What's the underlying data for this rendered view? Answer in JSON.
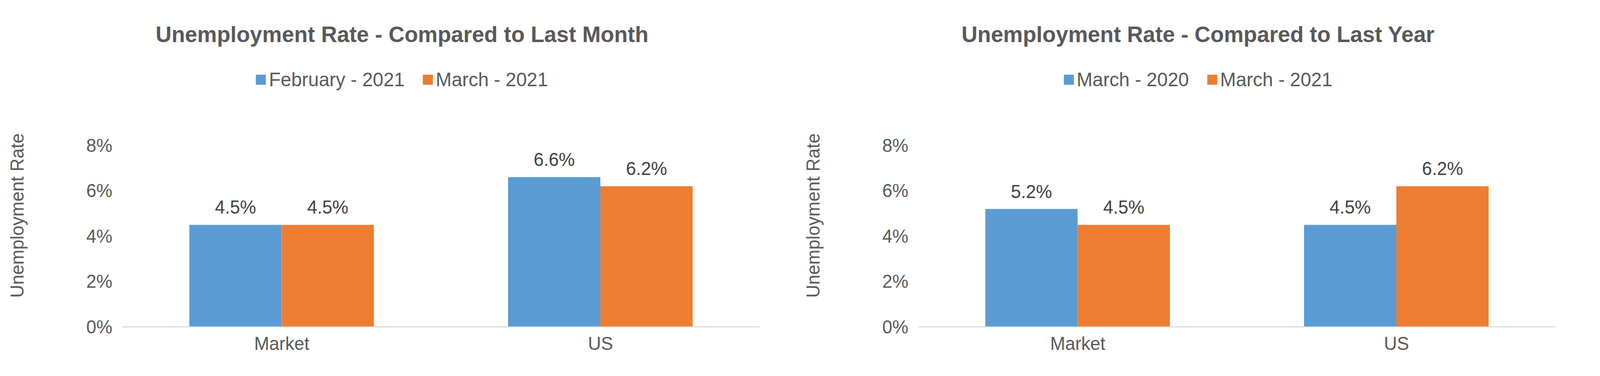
{
  "chart_data": [
    {
      "type": "bar",
      "title": "Unemployment Rate - Compared to Last Month",
      "ylabel": "Unemployment Rate",
      "categories": [
        "Market",
        "US"
      ],
      "series": [
        {
          "name": "February - 2021",
          "color": "#5b9bd5",
          "values": [
            4.5,
            6.6
          ],
          "value_labels": [
            "4.5%",
            "6.6%"
          ]
        },
        {
          "name": "March - 2021",
          "color": "#ed7d31",
          "values": [
            4.5,
            6.2
          ],
          "value_labels": [
            "4.5%",
            "6.2%"
          ]
        }
      ],
      "ylim": [
        0,
        8
      ],
      "yticks": [
        {
          "value": 0,
          "label": "0%"
        },
        {
          "value": 2,
          "label": "2%"
        },
        {
          "value": 4,
          "label": "4%"
        },
        {
          "value": 6,
          "label": "6%"
        },
        {
          "value": 8,
          "label": "8%"
        }
      ],
      "grid": false,
      "legend": "top",
      "data_labels": true
    },
    {
      "type": "bar",
      "title": "Unemployment Rate - Compared to Last Year",
      "ylabel": "Unemployment Rate",
      "categories": [
        "Market",
        "US"
      ],
      "series": [
        {
          "name": "March - 2020",
          "color": "#5b9bd5",
          "values": [
            5.2,
            4.5
          ],
          "value_labels": [
            "5.2%",
            "4.5%"
          ]
        },
        {
          "name": "March - 2021",
          "color": "#ed7d31",
          "values": [
            4.5,
            6.2
          ],
          "value_labels": [
            "4.5%",
            "6.2%"
          ]
        }
      ],
      "ylim": [
        0,
        8
      ],
      "yticks": [
        {
          "value": 0,
          "label": "0%"
        },
        {
          "value": 2,
          "label": "2%"
        },
        {
          "value": 4,
          "label": "4%"
        },
        {
          "value": 6,
          "label": "6%"
        },
        {
          "value": 8,
          "label": "8%"
        }
      ],
      "grid": false,
      "legend": "top",
      "data_labels": true
    }
  ]
}
